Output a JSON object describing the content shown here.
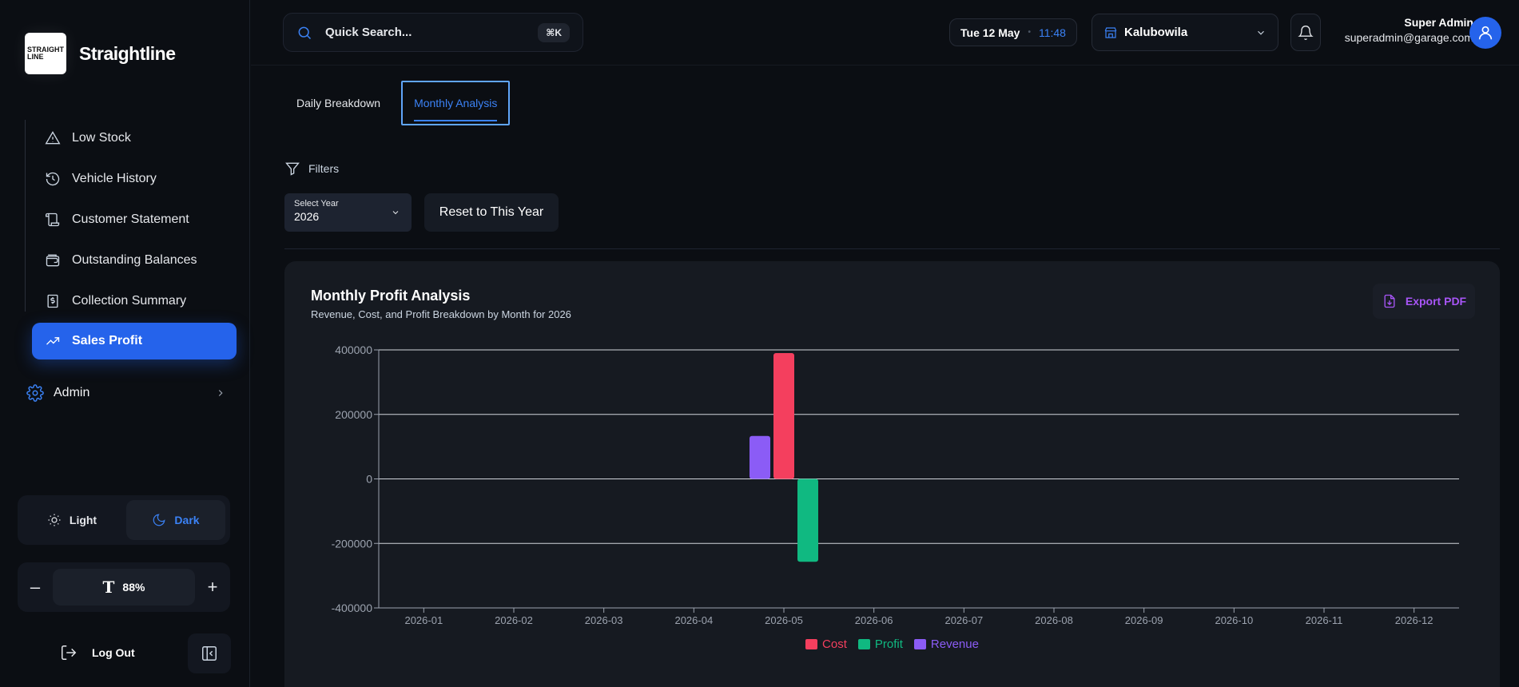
{
  "brand": {
    "logo_text": "STRAIGHT LINE",
    "name": "Straightline"
  },
  "sidebar": {
    "items": [
      {
        "label": "Low Stock",
        "icon": "warning-icon"
      },
      {
        "label": "Vehicle History",
        "icon": "history-icon"
      },
      {
        "label": "Customer Statement",
        "icon": "scroll-icon"
      },
      {
        "label": "Outstanding Balances",
        "icon": "wallet-icon"
      },
      {
        "label": "Collection Summary",
        "icon": "dollar-receipt-icon"
      },
      {
        "label": "Sales Profit",
        "icon": "trending-up-icon",
        "active": true
      }
    ],
    "admin_label": "Admin",
    "theme": {
      "light_label": "Light",
      "dark_label": "Dark",
      "selected": "Dark"
    },
    "zoom": {
      "minus": "–",
      "value": "88%",
      "plus": "+"
    },
    "logout_label": "Log Out"
  },
  "header": {
    "search_placeholder": "Quick Search...",
    "search_shortcut": "⌘K",
    "date": "Tue 12 May",
    "time": "11:48",
    "branch": "Kalubowila",
    "user_name": "Super Admin",
    "user_email": "superadmin@garage.com"
  },
  "tabs": [
    {
      "label": "Daily Breakdown",
      "active": false
    },
    {
      "label": "Monthly Analysis",
      "active": true
    }
  ],
  "filters": {
    "label": "Filters",
    "year_label": "Select Year",
    "year_value": "2026",
    "reset_label": "Reset to This Year"
  },
  "card": {
    "title": "Monthly Profit Analysis",
    "subtitle": "Revenue, Cost, and Profit Breakdown by Month for 2026",
    "export_label": "Export PDF"
  },
  "colors": {
    "accent": "#2563eb",
    "cost": "#f43f5e",
    "profit": "#10b981",
    "revenue": "#8b5cf6"
  },
  "chart_data": {
    "type": "bar",
    "categories": [
      "2026-01",
      "2026-02",
      "2026-03",
      "2026-04",
      "2026-05",
      "2026-06",
      "2026-07",
      "2026-08",
      "2026-09",
      "2026-10",
      "2026-11",
      "2026-12"
    ],
    "series": [
      {
        "name": "Revenue",
        "color": "#8b5cf6",
        "values": [
          0,
          0,
          0,
          0,
          133000,
          0,
          0,
          0,
          0,
          0,
          0,
          0
        ]
      },
      {
        "name": "Cost",
        "color": "#f43f5e",
        "values": [
          0,
          0,
          0,
          0,
          390000,
          0,
          0,
          0,
          0,
          0,
          0,
          0
        ]
      },
      {
        "name": "Profit",
        "color": "#10b981",
        "values": [
          0,
          0,
          0,
          0,
          -257000,
          0,
          0,
          0,
          0,
          0,
          0,
          0
        ]
      }
    ],
    "legend_order": [
      "Cost",
      "Profit",
      "Revenue"
    ],
    "yticks": [
      400000,
      200000,
      0,
      -200000,
      -400000
    ],
    "ylim": [
      -400000,
      400000
    ],
    "grid": true,
    "legend_position": "bottom"
  }
}
